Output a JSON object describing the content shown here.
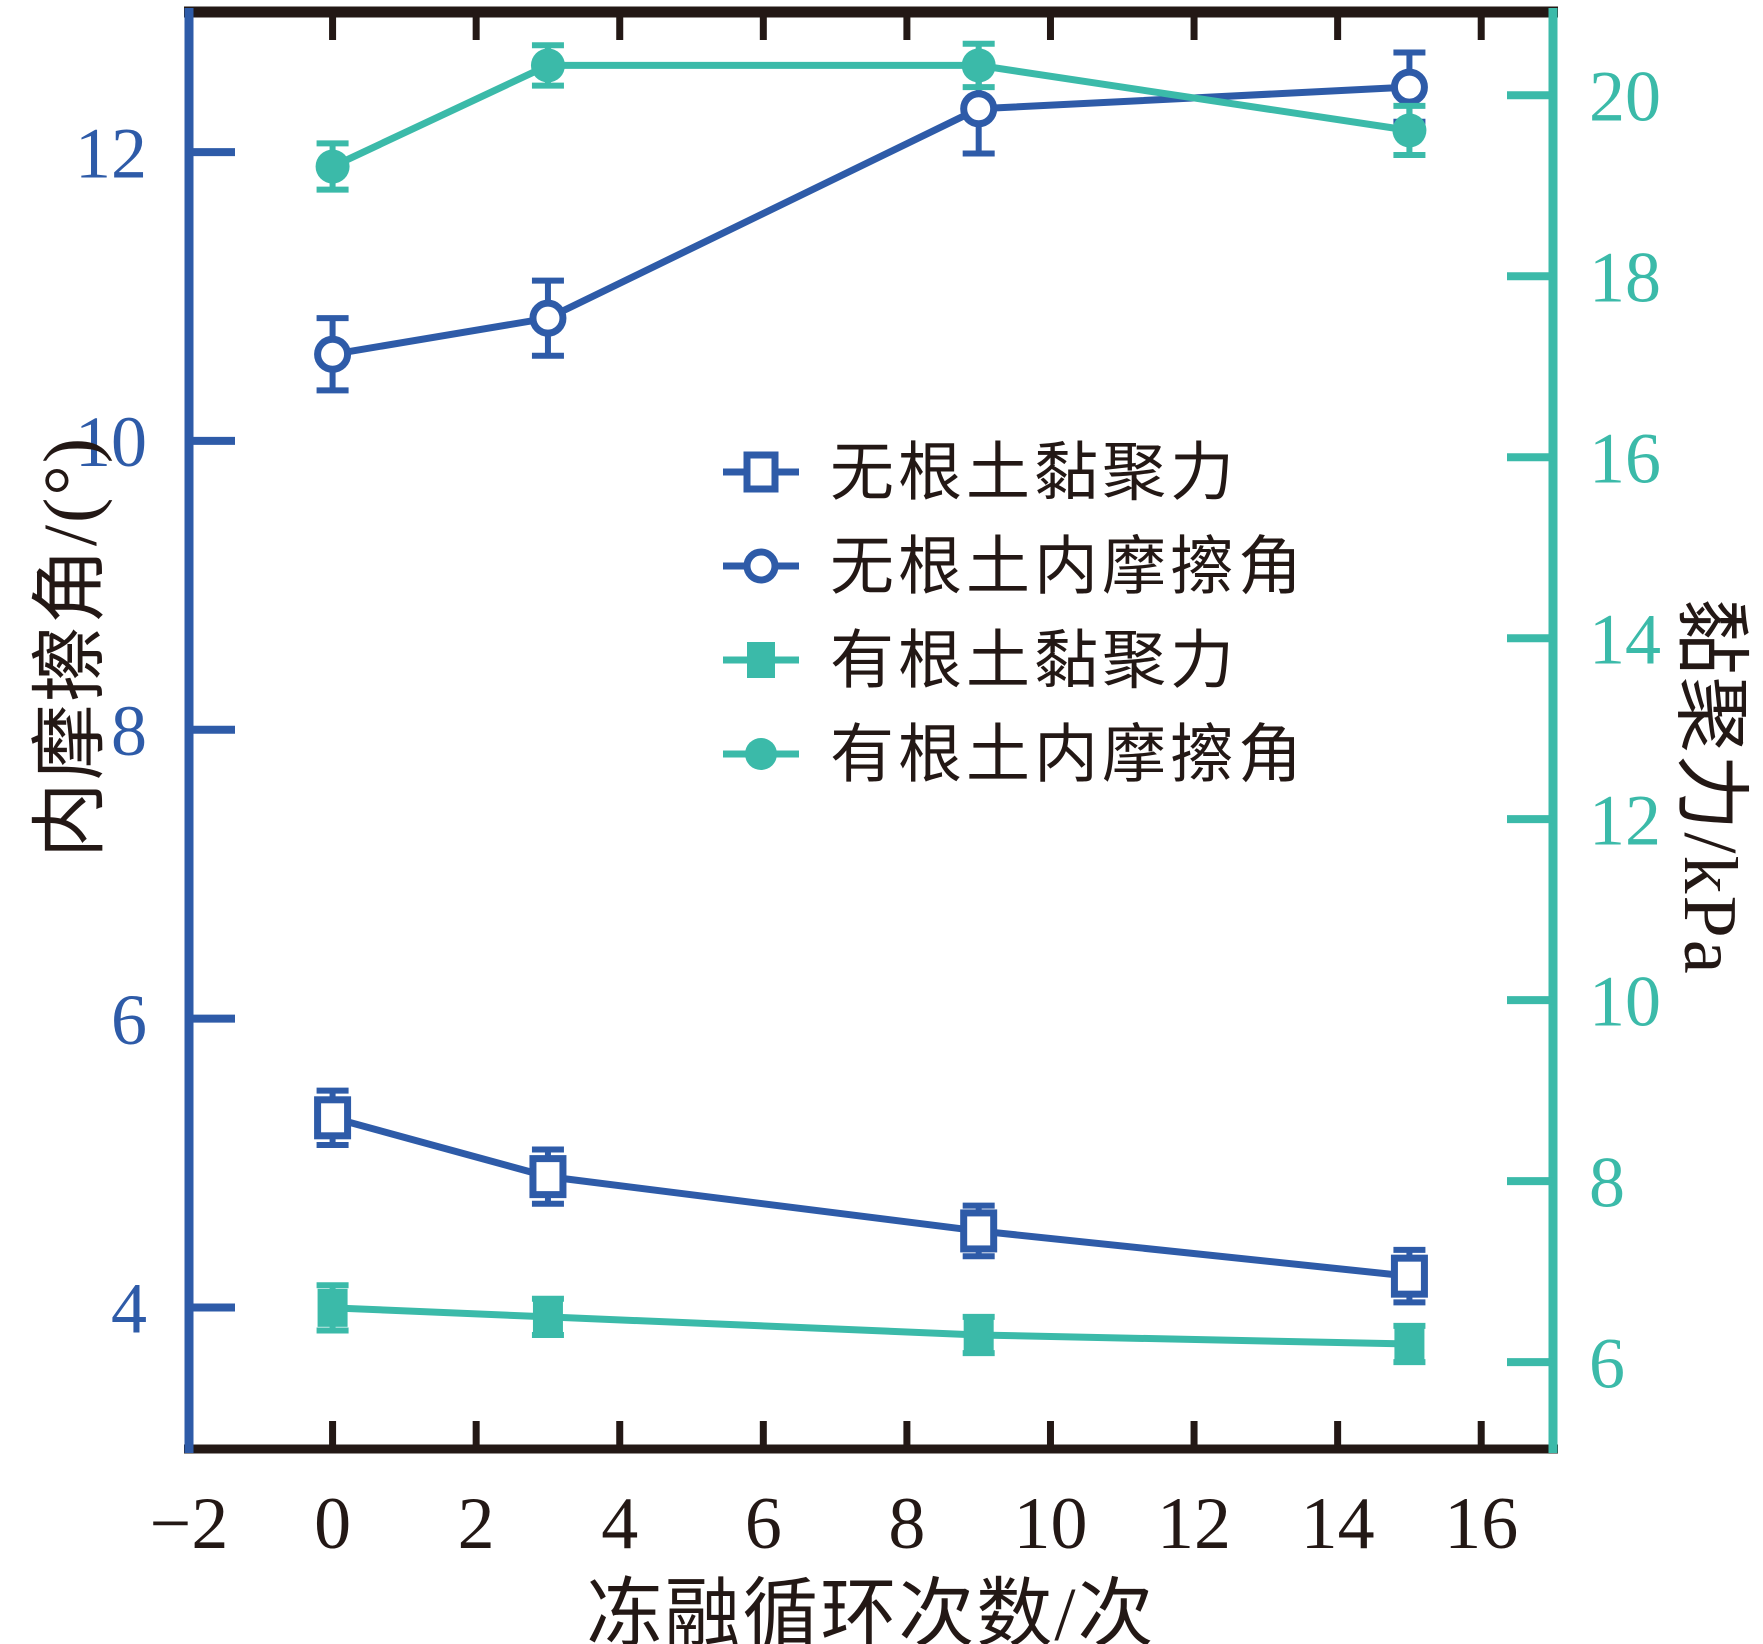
{
  "figure": {
    "background": "#ffffff",
    "frame_color": "#231815"
  },
  "chart_data": {
    "type": "line",
    "title": "",
    "x_axis": {
      "label": "冻融循环次数/次",
      "min": -2,
      "max": 17,
      "ticks": [
        -2,
        0,
        2,
        4,
        6,
        8,
        10,
        12,
        14,
        16
      ],
      "tick_labels": [
        "−2",
        "0",
        "2",
        "4",
        "6",
        "8",
        "10",
        "12",
        "14",
        "16"
      ],
      "color": "#231815"
    },
    "left_axis": {
      "label": "内摩擦角/(°)",
      "min": 3.02,
      "max": 12.97,
      "ticks": [
        4,
        6,
        8,
        10,
        12
      ],
      "tick_labels": [
        "4",
        "6",
        "8",
        "10",
        "12"
      ],
      "color": "#2e5ba8"
    },
    "right_axis": {
      "label": "黏聚力/kPa",
      "min": 5.04,
      "max": 20.92,
      "ticks": [
        6,
        8,
        10,
        12,
        14,
        16,
        18,
        20
      ],
      "tick_labels": [
        "6",
        "8",
        "10",
        "12",
        "14",
        "16",
        "18",
        "20"
      ],
      "color": "#3bbaa9"
    },
    "x_values": [
      0,
      3,
      9,
      15
    ],
    "series": [
      {
        "id": "rootless-cohesion",
        "name": "无根土黏聚力",
        "axis": "right",
        "marker": "square_open",
        "color": "#2e5ba8",
        "values": [
          8.7,
          8.05,
          7.45,
          6.95
        ],
        "errors": [
          0.3,
          0.3,
          0.28,
          0.29
        ]
      },
      {
        "id": "rootless-friction",
        "name": "无根土内摩擦角",
        "axis": "left",
        "marker": "circle_open",
        "color": "#2e5ba8",
        "values": [
          10.6,
          10.85,
          12.3,
          12.45
        ],
        "errors": [
          0.25,
          0.26,
          0.31,
          0.24
        ]
      },
      {
        "id": "rooted-cohesion",
        "name": "有根土黏聚力",
        "axis": "right",
        "marker": "square_filled",
        "color": "#3bbaa9",
        "values": [
          6.6,
          6.5,
          6.3,
          6.2
        ],
        "errors": [
          0.25,
          0.2,
          0.2,
          0.2
        ]
      },
      {
        "id": "rooted-friction",
        "name": "有根土内摩擦角",
        "axis": "left",
        "marker": "circle_filled",
        "color": "#3bbaa9",
        "values": [
          11.9,
          12.6,
          12.6,
          12.15
        ],
        "errors": [
          0.16,
          0.14,
          0.15,
          0.17
        ]
      }
    ],
    "legend": {
      "order": [
        0,
        1,
        2,
        3
      ],
      "position": "center-right-upper",
      "text_color": "#231815"
    }
  }
}
